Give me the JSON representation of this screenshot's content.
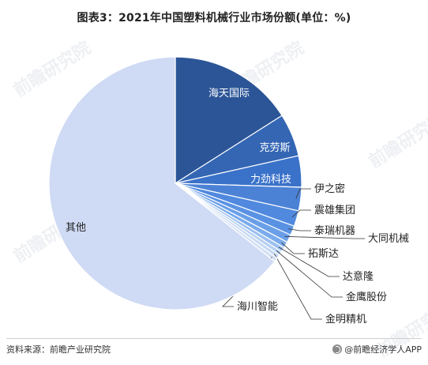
{
  "header": {
    "title": "图表3：2021年中国塑料机械行业市场份额(单位：%)"
  },
  "footer": {
    "source": "资料来源：前瞻产业研究院",
    "brand": "@前瞻经济学人APP"
  },
  "watermark": {
    "text": "前瞻研究院"
  },
  "chart_data": {
    "type": "pie",
    "title": "图表3：2021年中国塑料机械行业市场份额(单位：%)",
    "slices": [
      {
        "name": "海天国际",
        "value": 16.0,
        "color": "#2b5597"
      },
      {
        "name": "克劳斯",
        "value": 5.5,
        "color": "#3466b4"
      },
      {
        "name": "力劲科技",
        "value": 4.0,
        "color": "#3a72c9"
      },
      {
        "name": "伊之密",
        "value": 3.0,
        "color": "#4c82d6"
      },
      {
        "name": "震雄集团",
        "value": 2.0,
        "color": "#5089de"
      },
      {
        "name": "泰瑞机器",
        "value": 1.2,
        "color": "#5a92e3"
      },
      {
        "name": "大同机械",
        "value": 1.0,
        "color": "#6a9fe8"
      },
      {
        "name": "拓斯达",
        "value": 0.8,
        "color": "#7aabec"
      },
      {
        "name": "达意隆",
        "value": 0.6,
        "color": "#9cc0f0"
      },
      {
        "name": "金鹰股份",
        "value": 0.5,
        "color": "#b4cef2"
      },
      {
        "name": "金明精机",
        "value": 0.5,
        "color": "#c6d8f3"
      },
      {
        "name": "海川智能",
        "value": 0.5,
        "color": "#d2e0f4"
      },
      {
        "name": "其他",
        "value": 64.4,
        "color": "#cfdaf4"
      }
    ]
  }
}
